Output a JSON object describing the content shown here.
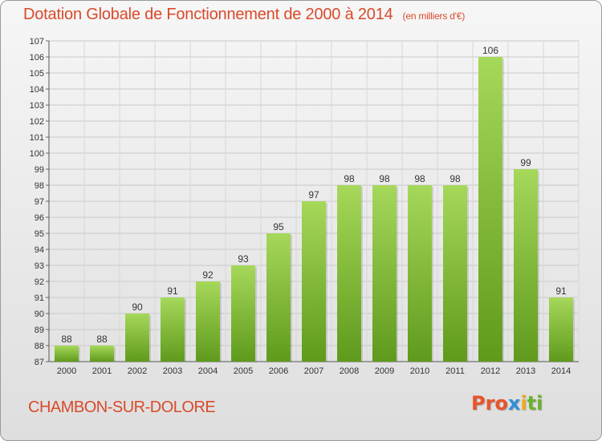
{
  "chart_data": {
    "type": "bar",
    "title": "Dotation Globale de Fonctionnement de 2000 à 2014",
    "unit_label": "(en milliers d'€)",
    "categories": [
      "2000",
      "2001",
      "2002",
      "2003",
      "2004",
      "2005",
      "2006",
      "2007",
      "2008",
      "2009",
      "2010",
      "2011",
      "2012",
      "2013",
      "2014"
    ],
    "values": [
      88,
      88,
      90,
      91,
      92,
      93,
      95,
      97,
      98,
      98,
      98,
      98,
      106,
      99,
      91
    ],
    "ylim": [
      87,
      107
    ],
    "yticks": [
      87,
      88,
      89,
      90,
      91,
      92,
      93,
      94,
      95,
      96,
      97,
      98,
      99,
      100,
      101,
      102,
      103,
      104,
      105,
      106,
      107
    ],
    "grid": true,
    "bar_color": "#7ab52f",
    "legend": "none"
  },
  "footer": {
    "commune": "CHAMBON-SUR-DOLORE",
    "logo_parts": [
      "Pro",
      "x",
      "i",
      "ti"
    ]
  },
  "colors": {
    "title": "#d94a2b",
    "bar_top": "#a6d85a",
    "bar_bottom": "#5f9a1c"
  }
}
